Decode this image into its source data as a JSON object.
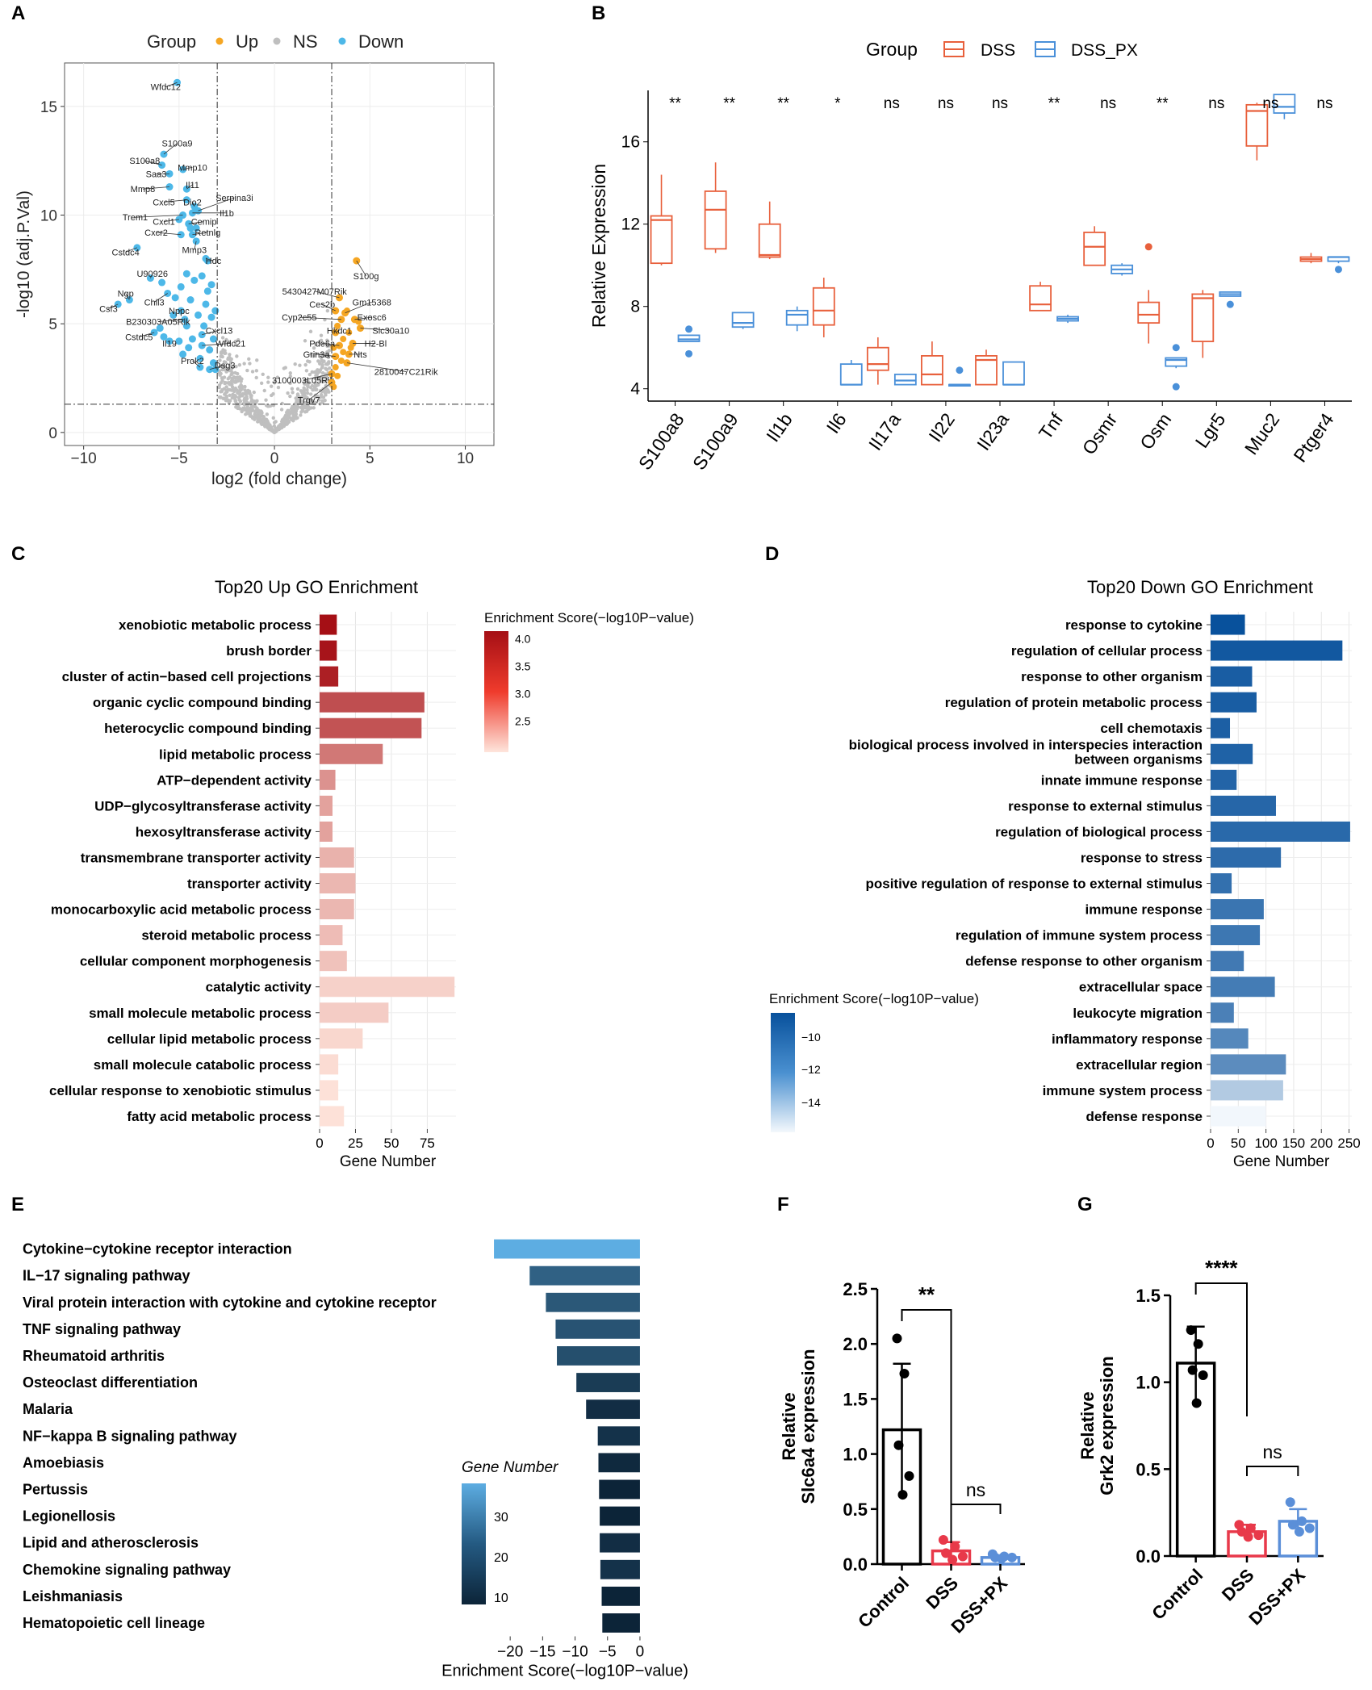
{
  "panels": {
    "A": "A",
    "B": "B",
    "C": "C",
    "D": "D",
    "E": "E",
    "F": "F",
    "G": "G"
  },
  "colors": {
    "up": "#F5A623",
    "ns": "#BFBFBF",
    "down": "#4DB8E8",
    "dss": "#E8603C",
    "dsspx": "#4A90D9",
    "control": "#000000",
    "red": "#E8394A",
    "blue": "#5B8FD8"
  },
  "chart_data": [
    {
      "id": "A",
      "type": "scatter",
      "title": "",
      "legend": {
        "title": "Group",
        "entries": [
          "Up",
          "NS",
          "Down"
        ]
      },
      "xlabel": "log2 (fold change)",
      "ylabel": "-log10 (adj.P.Val)",
      "xlim": [
        -11,
        11.5
      ],
      "ylim": [
        -0.6,
        17
      ],
      "xticks": [
        -10,
        -5,
        0,
        5,
        10
      ],
      "yticks": [
        0,
        5,
        10,
        15
      ],
      "vlines": [
        -3,
        3
      ],
      "hline": 1.3,
      "labels": [
        {
          "g": "Wfdc12",
          "x": -5.1,
          "y": 16.1,
          "lx": -5.7,
          "ly": 15.9
        },
        {
          "g": "S100a9",
          "x": -5.8,
          "y": 12.8,
          "lx": -5.1,
          "ly": 13.3
        },
        {
          "g": "S100a8",
          "x": -5.9,
          "y": 12.3,
          "lx": -6.8,
          "ly": 12.5
        },
        {
          "g": "Saa3",
          "x": -5.5,
          "y": 11.9,
          "lx": -6.2,
          "ly": 11.9
        },
        {
          "g": "Mmp10",
          "x": -4.8,
          "y": 12.1,
          "lx": -4.3,
          "ly": 12.2
        },
        {
          "g": "Mmp8",
          "x": -5.5,
          "y": 11.3,
          "lx": -6.9,
          "ly": 11.2
        },
        {
          "g": "Il11",
          "x": -4.6,
          "y": 11.2,
          "lx": -4.3,
          "ly": 11.4
        },
        {
          "g": "Cxcl5",
          "x": -4.6,
          "y": 10.7,
          "lx": -5.8,
          "ly": 10.6
        },
        {
          "g": "Dio2",
          "x": -4.2,
          "y": 10.4,
          "lx": -4.3,
          "ly": 10.6
        },
        {
          "g": "Serpina3i",
          "x": -4.0,
          "y": 10.2,
          "lx": -2.1,
          "ly": 10.8
        },
        {
          "g": "Il1b",
          "x": -4.3,
          "y": 10.1,
          "lx": -2.5,
          "ly": 10.1
        },
        {
          "g": "Trem1",
          "x": -4.8,
          "y": 10.0,
          "lx": -7.3,
          "ly": 9.9
        },
        {
          "g": "Cxcl1",
          "x": -5.0,
          "y": 9.8,
          "lx": -5.8,
          "ly": 9.7
        },
        {
          "g": "Cemip",
          "x": -4.5,
          "y": 9.6,
          "lx": -3.7,
          "ly": 9.7
        },
        {
          "g": "Cxcr2",
          "x": -4.9,
          "y": 9.1,
          "lx": -6.2,
          "ly": 9.2
        },
        {
          "g": "Retnlg",
          "x": -4.3,
          "y": 9.1,
          "lx": -3.5,
          "ly": 9.2
        },
        {
          "g": "Cstdc4",
          "x": -7.2,
          "y": 8.5,
          "lx": -7.8,
          "ly": 8.3
        },
        {
          "g": "Mmp3",
          "x": -4.1,
          "y": 8.8,
          "lx": -4.2,
          "ly": 8.4
        },
        {
          "g": "Hdc",
          "x": -3.6,
          "y": 8.0,
          "lx": -3.2,
          "ly": 7.9
        },
        {
          "g": "U90926",
          "x": -6.5,
          "y": 7.1,
          "lx": -6.4,
          "ly": 7.3
        },
        {
          "g": "Ngp",
          "x": -7.6,
          "y": 6.1,
          "lx": -7.8,
          "ly": 6.4
        },
        {
          "g": "Csf3",
          "x": -8.2,
          "y": 5.9,
          "lx": -8.7,
          "ly": 5.7
        },
        {
          "g": "Chil3",
          "x": -5.6,
          "y": 6.4,
          "lx": -6.3,
          "ly": 6.0
        },
        {
          "g": "Nppc",
          "x": -4.9,
          "y": 5.6,
          "lx": -5.0,
          "ly": 5.6
        },
        {
          "g": "B230303A05Rik",
          "x": -4.7,
          "y": 5.2,
          "lx": -6.1,
          "ly": 5.1
        },
        {
          "g": "Cxcl13",
          "x": -3.8,
          "y": 4.5,
          "lx": -2.9,
          "ly": 4.7
        },
        {
          "g": "Cstdc5",
          "x": -6.3,
          "y": 4.6,
          "lx": -7.1,
          "ly": 4.4
        },
        {
          "g": "Il19",
          "x": -5.5,
          "y": 4.2,
          "lx": -5.5,
          "ly": 4.1
        },
        {
          "g": "Wfdc21",
          "x": -3.8,
          "y": 4.0,
          "lx": -2.3,
          "ly": 4.1
        },
        {
          "g": "Prok2",
          "x": -3.9,
          "y": 3.0,
          "lx": -4.3,
          "ly": 3.3
        },
        {
          "g": "Dsg3",
          "x": -3.4,
          "y": 2.9,
          "lx": -2.6,
          "ly": 3.1
        },
        {
          "g": "S100g",
          "x": 4.3,
          "y": 7.9,
          "lx": 4.8,
          "ly": 7.2
        },
        {
          "g": "5430427M07Rik",
          "x": 3.4,
          "y": 6.2,
          "lx": 2.1,
          "ly": 6.5
        },
        {
          "g": "Ces2b",
          "x": 3.2,
          "y": 5.6,
          "lx": 2.5,
          "ly": 5.9
        },
        {
          "g": "Gm15368",
          "x": 3.7,
          "y": 5.5,
          "lx": 5.1,
          "ly": 6.0
        },
        {
          "g": "Cyp2c55",
          "x": 3.5,
          "y": 5.2,
          "lx": 1.3,
          "ly": 5.3
        },
        {
          "g": "Exosc6",
          "x": 4.2,
          "y": 5.2,
          "lx": 5.1,
          "ly": 5.3
        },
        {
          "g": "Hkdc1",
          "x": 3.2,
          "y": 4.6,
          "lx": 3.4,
          "ly": 4.7
        },
        {
          "g": "Slc30a10",
          "x": 4.5,
          "y": 4.8,
          "lx": 6.1,
          "ly": 4.7
        },
        {
          "g": "Pde6a",
          "x": 3.4,
          "y": 4.0,
          "lx": 2.5,
          "ly": 4.1
        },
        {
          "g": "H2-Bl",
          "x": 4.1,
          "y": 4.1,
          "lx": 5.3,
          "ly": 4.1
        },
        {
          "g": "Grin3a",
          "x": 3.2,
          "y": 3.5,
          "lx": 2.2,
          "ly": 3.6
        },
        {
          "g": "Nts",
          "x": 3.9,
          "y": 3.6,
          "lx": 4.5,
          "ly": 3.6
        },
        {
          "g": "2810047C21Rik",
          "x": 3.8,
          "y": 3.2,
          "lx": 6.9,
          "ly": 2.8
        },
        {
          "g": "3100003L05Rik",
          "x": 3.0,
          "y": 2.7,
          "lx": 1.5,
          "ly": 2.4
        },
        {
          "g": "Trgv7",
          "x": 3.0,
          "y": 2.3,
          "lx": 1.8,
          "ly": 1.5
        }
      ]
    },
    {
      "id": "B",
      "type": "box",
      "ylabel": "Relative Expression",
      "legend": {
        "title": "Group",
        "entries": [
          "DSS",
          "DSS_PX"
        ]
      },
      "ylim": [
        3.4,
        18.5
      ],
      "yticks": [
        4,
        8,
        12,
        16
      ],
      "genes": [
        "S100a8",
        "S100a9",
        "Il1b",
        "Il6",
        "Il17a",
        "Il22",
        "Il23a",
        "Tnf",
        "Osmr",
        "Osm",
        "Lgr5",
        "Muc2",
        "Ptger4"
      ],
      "sig": [
        "**",
        "**",
        "**",
        "*",
        "ns",
        "ns",
        "ns",
        "**",
        "ns",
        "**",
        "ns",
        "ns",
        "ns"
      ],
      "dss": [
        [
          10,
          10.1,
          12.2,
          12.4,
          14.4
        ],
        [
          10.6,
          10.8,
          12.7,
          13.6,
          15
        ],
        [
          10.3,
          10.4,
          10.5,
          12,
          13.1
        ],
        [
          6.5,
          7.1,
          7.8,
          8.9,
          9.4
        ],
        [
          4.2,
          4.9,
          5.2,
          6,
          6.5
        ],
        [
          4.2,
          4.2,
          4.7,
          5.6,
          6.3
        ],
        [
          4.2,
          4.2,
          5.4,
          5.6,
          5.9
        ],
        [
          7.8,
          7.8,
          8.1,
          9,
          9.2
        ],
        [
          10,
          10,
          10.9,
          11.6,
          11.9
        ],
        [
          6.2,
          7.2,
          7.6,
          8.2,
          8.8
        ],
        [
          5.5,
          6.3,
          8.4,
          8.6,
          8.8
        ],
        [
          15.1,
          15.8,
          17.5,
          17.8,
          17.9
        ],
        [
          10.1,
          10.2,
          10.3,
          10.4,
          10.6
        ]
      ],
      "dss_out": [
        [],
        [],
        [],
        [],
        [],
        [],
        [],
        [],
        [],
        [
          10.9
        ],
        [],
        [],
        []
      ],
      "dsspx": [
        [
          6.3,
          6.3,
          6.4,
          6.6,
          6.6
        ],
        [
          6.9,
          7,
          7.2,
          7.7,
          7.7
        ],
        [
          6.8,
          7.1,
          7.6,
          7.8,
          8
        ],
        [
          4.2,
          4.2,
          4.2,
          5.2,
          5.4
        ],
        [
          4.2,
          4.2,
          4.4,
          4.7,
          4.7
        ],
        [
          4.2,
          4.2,
          4.2,
          4.2,
          4.2
        ],
        [
          4.2,
          4.2,
          4.2,
          5.3,
          5.3
        ],
        [
          7.2,
          7.3,
          7.4,
          7.5,
          7.6
        ],
        [
          9.5,
          9.6,
          9.8,
          10,
          10.1
        ],
        [
          5,
          5.1,
          5.4,
          5.5,
          5.5
        ],
        [
          8.5,
          8.5,
          8.6,
          8.7,
          8.7
        ],
        [
          17.1,
          17.4,
          17.7,
          18.3,
          18.3
        ],
        [
          10.1,
          10.2,
          10.4,
          10.4,
          10.4
        ]
      ],
      "dsspx_out": [
        [
          5.7,
          6.9
        ],
        [],
        [],
        [],
        [],
        [
          4.9
        ],
        [],
        [],
        [],
        [
          4.1,
          6.0
        ],
        [
          8.1
        ],
        [],
        [
          9.8
        ]
      ]
    },
    {
      "id": "C",
      "type": "bar",
      "title": "Top20 Up GO Enrichment",
      "xlabel": "Gene Number",
      "legend_title": "Enrichment Score(−log10P−value)",
      "legend_ticks": [
        "4.0",
        "3.5",
        "3.0",
        "2.5"
      ],
      "xlim": [
        0,
        95
      ],
      "xticks": [
        0,
        25,
        50,
        75
      ],
      "categories": [
        "xenobiotic metabolic process",
        "brush border",
        "cluster of actin−based cell projections",
        "organic cyclic compound binding",
        "heterocyclic compound binding",
        "lipid metabolic process",
        "ATP−dependent activity",
        "UDP−glycosyltransferase activity",
        "hexosyltransferase activity",
        "transmembrane transporter activity",
        "transporter activity",
        "monocarboxylic acid metabolic process",
        "steroid metabolic process",
        "cellular component morphogenesis",
        "catalytic activity",
        "small molecule metabolic process",
        "cellular lipid metabolic process",
        "small molecule catabolic process",
        "cellular response to xenobiotic stimulus",
        "fatty acid metabolic process"
      ],
      "values": [
        12,
        12,
        13,
        73,
        71,
        44,
        11,
        9,
        9,
        24,
        25,
        24,
        16,
        19,
        94,
        48,
        30,
        13,
        13,
        17
      ],
      "scores": [
        4.1,
        4.05,
        3.95,
        3.5,
        3.45,
        3.1,
        2.85,
        2.7,
        2.7,
        2.55,
        2.5,
        2.5,
        2.45,
        2.4,
        2.25,
        2.3,
        2.2,
        2.15,
        2.1,
        2.1
      ]
    },
    {
      "id": "D",
      "type": "bar",
      "title": "Top20 Down GO Enrichment",
      "xlabel": "Gene Number",
      "legend_title": "Enrichment Score(−log10P−value)",
      "legend_ticks": [
        "−10",
        "−12",
        "−14"
      ],
      "xlim": [
        0,
        255
      ],
      "xticks": [
        0,
        50,
        100,
        150,
        200,
        250
      ],
      "categories": [
        "response to cytokine",
        "regulation of cellular process",
        "response to other organism",
        "regulation of protein metabolic process",
        "cell chemotaxis",
        "biological process involved in interspecies interaction between organisms",
        "innate immune response",
        "response to external stimulus",
        "regulation of biological process",
        "response to stress",
        "positive regulation of response to external stimulus",
        "immune response",
        "regulation of immune system process",
        "defense response to other organism",
        "extracellular space",
        "leukocyte migration",
        "inflammatory response",
        "extracellular region",
        "immune system process",
        "defense response"
      ],
      "values": [
        62,
        238,
        75,
        83,
        35,
        76,
        47,
        118,
        252,
        127,
        38,
        96,
        89,
        60,
        116,
        42,
        68,
        136,
        131,
        100
      ],
      "scores": [
        -8.5,
        -8.8,
        -9,
        -9,
        -9.1,
        -9.2,
        -9.3,
        -9.4,
        -9.5,
        -9.6,
        -9.8,
        -10,
        -10.1,
        -10.2,
        -10.3,
        -10.5,
        -10.8,
        -11,
        -13.6,
        -15.5
      ]
    },
    {
      "id": "E",
      "type": "bar",
      "xlabel": "Enrichment Score(−log10P−value)",
      "legend_title": "Gene Number",
      "legend_ticks": [
        "30",
        "20",
        "10"
      ],
      "xlim": [
        -24,
        1.5
      ],
      "xticks": [
        -20,
        -15,
        -10,
        -5,
        0
      ],
      "categories": [
        "Cytokine−cytokine receptor interaction",
        "IL−17 signaling pathway",
        "Viral protein interaction with cytokine and cytokine receptor",
        "TNF signaling pathway",
        "Rheumatoid arthritis",
        "Osteoclast differentiation",
        "Malaria",
        "NF−kappa B signaling pathway",
        "Amoebiasis",
        "Pertussis",
        "Legionellosis",
        "Lipid and atherosclerosis",
        "Chemokine signaling pathway",
        "Leishmaniasis",
        "Hematopoietic cell lineage"
      ],
      "values": [
        -22.5,
        -17,
        -14.5,
        -13,
        -12.8,
        -9.8,
        -8.3,
        -6.5,
        -6.4,
        -6.3,
        -6.2,
        -6.2,
        -6.1,
        -5.9,
        -5.8
      ],
      "gene_numbers": [
        38,
        22,
        20,
        19,
        18,
        14,
        11,
        12,
        10,
        9,
        9,
        11,
        12,
        9,
        9
      ]
    },
    {
      "id": "F",
      "type": "bar",
      "ylabel": "Relative\nSlc6a4 expression",
      "categories": [
        "Control",
        "DSS",
        "DSS+PX"
      ],
      "ylim": [
        0,
        2.5
      ],
      "yticks": [
        "0.0",
        "0.5",
        "1.0",
        "1.5",
        "2.0",
        "2.5"
      ],
      "means": [
        1.22,
        0.12,
        0.06
      ],
      "sd": [
        0.6,
        0.08,
        0.02
      ],
      "points": [
        [
          2.05,
          1.73,
          1.08,
          0.8,
          0.63
        ],
        [
          0.22,
          0.16,
          0.1,
          0.07,
          0.04
        ],
        [
          0.09,
          0.07,
          0.06,
          0.06,
          0.05
        ]
      ],
      "sig1": "**",
      "sig2": "ns"
    },
    {
      "id": "G",
      "type": "bar",
      "ylabel": "Relative\nGrk2 expression",
      "categories": [
        "Control",
        "DSS",
        "DSS+PX"
      ],
      "ylim": [
        0,
        1.5
      ],
      "yticks": [
        "0.0",
        "0.5",
        "1.0",
        "1.5"
      ],
      "means": [
        1.11,
        0.14,
        0.2
      ],
      "sd": [
        0.21,
        0.04,
        0.07
      ],
      "points": [
        [
          1.3,
          1.22,
          1.07,
          1.04,
          0.88
        ],
        [
          0.18,
          0.16,
          0.14,
          0.12,
          0.11
        ],
        [
          0.31,
          0.2,
          0.18,
          0.16,
          0.14
        ]
      ],
      "sig1": "****",
      "sig2": "ns"
    }
  ]
}
